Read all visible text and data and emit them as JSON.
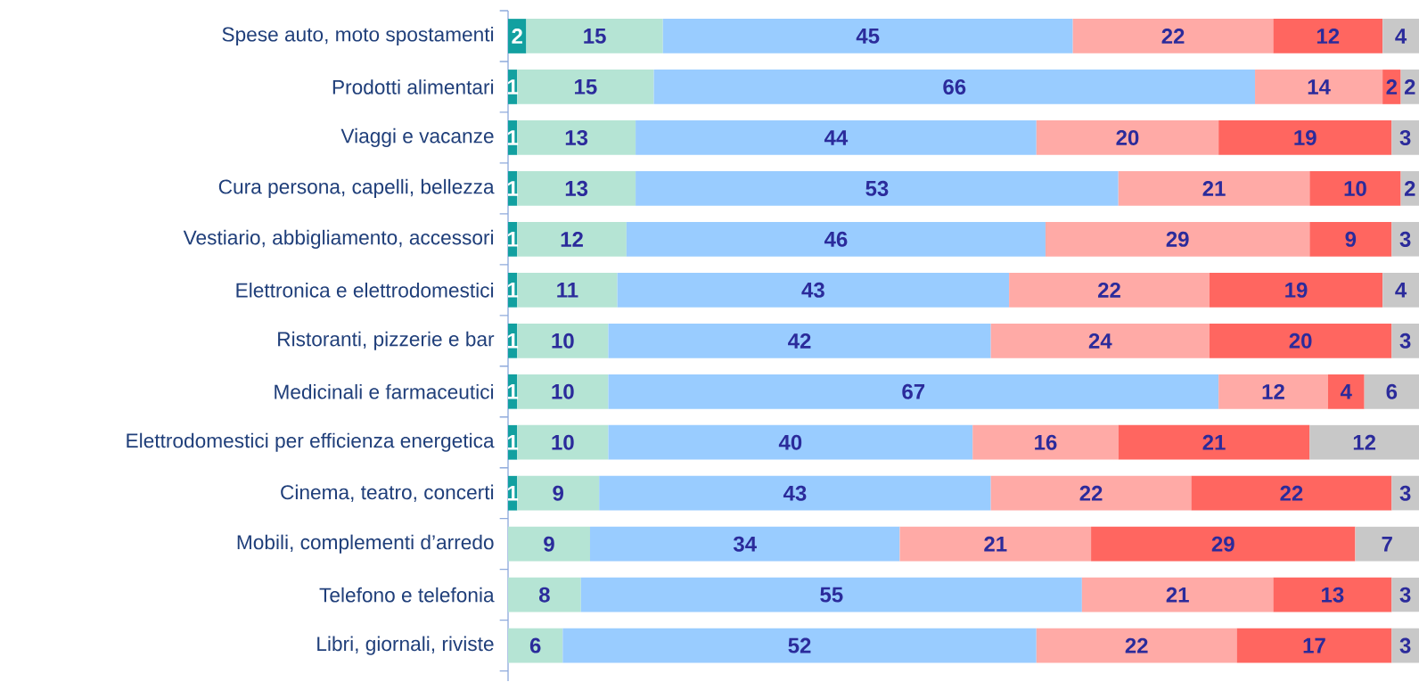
{
  "chart_data": {
    "type": "bar",
    "orientation": "horizontal",
    "stacked": true,
    "data_labels": true,
    "tick_labels": "y",
    "xlim": [
      0,
      100
    ],
    "categories": [
      "Spese auto, moto spostamenti",
      "Prodotti alimentari",
      "Viaggi e vacanze",
      "Cura persona, capelli, bellezza",
      "Vestiario, abbigliamento, accessori",
      "Elettronica e elettrodomestici",
      "Ristoranti, pizzerie e bar",
      "Medicinali e farmaceutici",
      "Elettrodomestici per efficienza energetica",
      "Cinema, teatro, concerti",
      "Mobili, complementi d’arredo",
      "Telefono e telefonia",
      "Libri, giornali, riviste"
    ],
    "series": [
      {
        "color": "#12a0a0",
        "values": [
          2,
          1,
          1,
          1,
          1,
          1,
          1,
          1,
          1,
          1,
          null,
          null,
          null
        ]
      },
      {
        "color": "#b5e4d4",
        "values": [
          15,
          15,
          13,
          13,
          12,
          11,
          10,
          10,
          10,
          9,
          9,
          8,
          6
        ]
      },
      {
        "color": "#99ccff",
        "values": [
          45,
          66,
          44,
          53,
          46,
          43,
          42,
          67,
          40,
          43,
          34,
          55,
          52
        ]
      },
      {
        "color": "#ffaaa6",
        "values": [
          22,
          14,
          20,
          21,
          29,
          22,
          24,
          12,
          16,
          22,
          21,
          21,
          22
        ]
      },
      {
        "color": "#ff6660",
        "values": [
          12,
          2,
          19,
          10,
          9,
          19,
          20,
          4,
          21,
          22,
          29,
          13,
          17
        ]
      },
      {
        "color": "#c8c8c8",
        "values": [
          4,
          2,
          3,
          2,
          3,
          4,
          3,
          6,
          12,
          3,
          7,
          3,
          3
        ]
      }
    ]
  }
}
